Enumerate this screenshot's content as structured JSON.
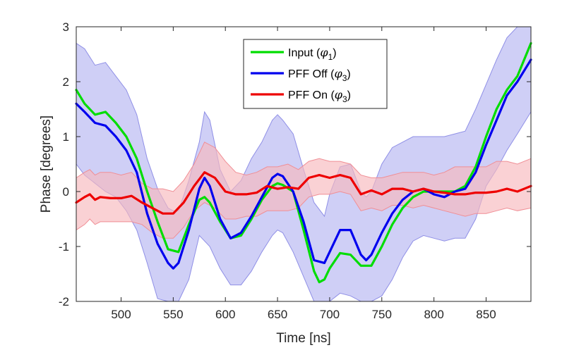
{
  "chart_data": {
    "type": "line",
    "title": "",
    "xlabel": "Time [ns]",
    "ylabel": "Phase [degrees]",
    "xlim": [
      457,
      893
    ],
    "ylim": [
      -2,
      3
    ],
    "xticks": [
      500,
      550,
      600,
      650,
      700,
      750,
      800,
      850
    ],
    "yticks": [
      -2,
      -1,
      0,
      1,
      2,
      3
    ],
    "xtick_labels": [
      "500",
      "550",
      "600",
      "650",
      "700",
      "750",
      "800",
      "850"
    ],
    "ytick_labels": [
      "-2",
      "-1",
      "0",
      "1",
      "2",
      "3"
    ],
    "legend_position": "top-center",
    "series": [
      {
        "name": "Input (φ1)",
        "legend_main": "Input (",
        "legend_sym": "φ",
        "legend_sub": "1",
        "legend_end": ")",
        "color": "#00dd00",
        "x": [
          457,
          465,
          475,
          485,
          495,
          505,
          515,
          525,
          535,
          545,
          555,
          565,
          575,
          580,
          585,
          595,
          605,
          615,
          625,
          635,
          645,
          650,
          655,
          665,
          675,
          685,
          690,
          695,
          700,
          710,
          720,
          730,
          740,
          750,
          760,
          770,
          780,
          790,
          800,
          810,
          820,
          830,
          840,
          850,
          860,
          870,
          880,
          893
        ],
        "y": [
          1.85,
          1.6,
          1.4,
          1.45,
          1.25,
          1.0,
          0.6,
          0.0,
          -0.55,
          -1.05,
          -1.1,
          -0.6,
          -0.15,
          -0.1,
          -0.2,
          -0.55,
          -0.85,
          -0.8,
          -0.5,
          -0.15,
          0.1,
          0.15,
          0.12,
          0.0,
          -0.7,
          -1.45,
          -1.65,
          -1.6,
          -1.4,
          -1.12,
          -1.15,
          -1.35,
          -1.35,
          -1.0,
          -0.6,
          -0.3,
          -0.1,
          0.0,
          0.0,
          0.0,
          0.0,
          0.1,
          0.45,
          1.0,
          1.5,
          1.85,
          2.1,
          2.7
        ]
      },
      {
        "name": "PFF Off (φ3)",
        "legend_main": "PFF Off (",
        "legend_sym": "φ",
        "legend_sub": "3",
        "legend_end": ")",
        "color": "#0000ee",
        "band_color": "#c7c7f5",
        "band_edge": "#8f8fe6",
        "x": [
          457,
          465,
          475,
          485,
          495,
          505,
          515,
          525,
          535,
          545,
          550,
          555,
          565,
          575,
          580,
          585,
          595,
          605,
          615,
          625,
          635,
          645,
          650,
          655,
          665,
          675,
          685,
          695,
          700,
          710,
          720,
          730,
          735,
          740,
          750,
          760,
          770,
          780,
          790,
          800,
          810,
          820,
          830,
          840,
          850,
          860,
          870,
          880,
          893
        ],
        "y": [
          1.6,
          1.45,
          1.25,
          1.2,
          1.0,
          0.75,
          0.35,
          -0.4,
          -0.95,
          -1.3,
          -1.4,
          -1.3,
          -0.7,
          0.05,
          0.25,
          0.1,
          -0.5,
          -0.85,
          -0.75,
          -0.45,
          -0.1,
          0.25,
          0.32,
          0.28,
          0.0,
          -0.55,
          -1.25,
          -1.3,
          -1.1,
          -0.7,
          -0.7,
          -1.15,
          -1.25,
          -1.15,
          -0.75,
          -0.4,
          -0.15,
          0.0,
          0.05,
          -0.05,
          -0.1,
          0.0,
          0.05,
          0.35,
          0.85,
          1.3,
          1.75,
          2.0,
          2.4
        ],
        "band_upper": [
          2.7,
          2.6,
          2.3,
          2.35,
          2.1,
          1.85,
          1.4,
          0.6,
          0.05,
          -0.3,
          -0.35,
          -0.35,
          0.2,
          0.9,
          1.45,
          1.3,
          0.4,
          0.0,
          0.2,
          0.6,
          0.9,
          1.3,
          1.4,
          1.3,
          1.05,
          0.4,
          -0.2,
          -0.45,
          -0.05,
          0.45,
          0.5,
          0.0,
          -0.1,
          0.0,
          0.5,
          0.8,
          0.9,
          1.0,
          1.0,
          1.0,
          1.0,
          1.05,
          1.1,
          1.5,
          1.95,
          2.4,
          2.8,
          3.0,
          3.0
        ],
        "band_lower": [
          0.5,
          0.3,
          0.15,
          0.0,
          -0.1,
          -0.35,
          -0.7,
          -1.3,
          -1.95,
          -2.0,
          -2.0,
          -2.0,
          -1.6,
          -0.8,
          -0.9,
          -1.0,
          -1.4,
          -1.7,
          -1.7,
          -1.45,
          -1.1,
          -0.8,
          -0.7,
          -0.75,
          -1.1,
          -1.55,
          -2.0,
          -2.0,
          -2.0,
          -1.85,
          -1.9,
          -2.0,
          -2.0,
          -2.0,
          -1.9,
          -1.6,
          -1.2,
          -0.9,
          -0.8,
          -0.85,
          -0.9,
          -0.85,
          -0.85,
          -0.5,
          0.1,
          0.4,
          0.75,
          1.05,
          1.45
        ]
      },
      {
        "name": "PFF On (φ3)",
        "legend_main": "PFF On (",
        "legend_sym": "φ",
        "legend_sub": "3",
        "legend_end": ")",
        "color": "#ee0000",
        "band_color": "#f7b9bd",
        "band_edge": "#f08e95",
        "x": [
          457,
          465,
          470,
          475,
          480,
          490,
          500,
          510,
          520,
          530,
          540,
          550,
          560,
          570,
          580,
          590,
          600,
          610,
          620,
          630,
          640,
          650,
          660,
          670,
          680,
          690,
          700,
          710,
          720,
          730,
          740,
          750,
          760,
          770,
          780,
          790,
          800,
          810,
          820,
          830,
          840,
          850,
          860,
          870,
          880,
          893
        ],
        "y": [
          -0.2,
          -0.1,
          -0.05,
          -0.15,
          -0.1,
          -0.12,
          -0.12,
          -0.08,
          -0.2,
          -0.3,
          -0.4,
          -0.4,
          -0.2,
          0.1,
          0.35,
          0.25,
          0.0,
          -0.05,
          -0.05,
          -0.02,
          0.1,
          0.05,
          0.08,
          0.05,
          0.25,
          0.3,
          0.25,
          0.3,
          0.25,
          -0.05,
          0.02,
          -0.05,
          0.05,
          0.05,
          0.0,
          0.05,
          0.0,
          -0.02,
          -0.05,
          -0.05,
          -0.02,
          -0.02,
          0.0,
          0.05,
          0.0,
          0.1
        ]
      }
    ],
    "pff_on_band_upper": [
      0.25,
      0.35,
      0.4,
      0.3,
      0.35,
      0.35,
      0.3,
      0.35,
      0.15,
      0.05,
      0.05,
      0.0,
      0.2,
      0.5,
      0.9,
      0.8,
      0.55,
      0.35,
      0.3,
      0.35,
      0.45,
      0.45,
      0.5,
      0.4,
      0.55,
      0.6,
      0.55,
      0.55,
      0.5,
      0.3,
      0.25,
      0.25,
      0.3,
      0.35,
      0.35,
      0.35,
      0.3,
      0.35,
      0.45,
      0.45,
      0.45,
      0.45,
      0.55,
      0.55,
      0.5,
      0.6
    ],
    "pff_on_band_lower": [
      -0.7,
      -0.6,
      -0.5,
      -0.6,
      -0.55,
      -0.55,
      -0.55,
      -0.55,
      -0.6,
      -0.75,
      -0.85,
      -0.85,
      -0.65,
      -0.35,
      -0.2,
      -0.3,
      -0.5,
      -0.5,
      -0.45,
      -0.45,
      -0.35,
      -0.35,
      -0.35,
      -0.3,
      -0.1,
      -0.05,
      -0.05,
      0.0,
      -0.05,
      -0.35,
      -0.3,
      -0.35,
      -0.25,
      -0.25,
      -0.3,
      -0.25,
      -0.3,
      -0.35,
      -0.4,
      -0.45,
      -0.4,
      -0.4,
      -0.35,
      -0.3,
      -0.35,
      -0.3
    ]
  }
}
